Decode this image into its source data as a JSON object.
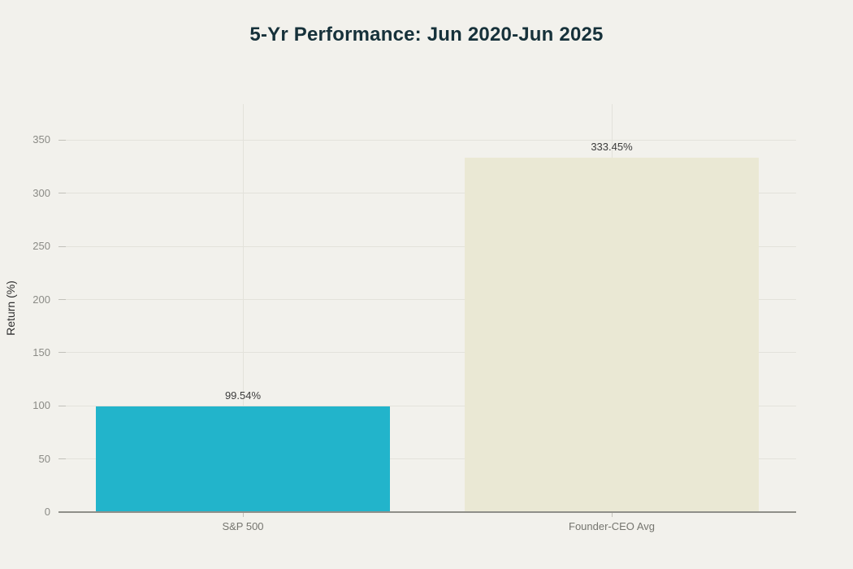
{
  "background_color": "#f2f1ec",
  "title_color": "#16313a",
  "chart_data": {
    "type": "bar",
    "title": "5-Yr Performance: Jun 2020-Jun 2025",
    "categories": [
      "S&P 500",
      "Founder-CEO Avg"
    ],
    "values": [
      99.54,
      333.45
    ],
    "value_labels": [
      "99.54%",
      "333.45%"
    ],
    "bar_colors": [
      "#22b4cb",
      "#eae8d4"
    ],
    "xlabel": "",
    "ylabel": "Return (%)",
    "ylim": [
      0,
      384
    ],
    "yticks": [
      0,
      50,
      100,
      150,
      200,
      250,
      300,
      350
    ],
    "ytick_labels": [
      "0",
      "50",
      "100",
      "150",
      "200",
      "250",
      "300",
      "350"
    ],
    "grid": true,
    "legend": false
  },
  "style_colors": {
    "gridline": "#e3e2db",
    "tick_mark": "#c2c1ba",
    "axis_line": "#8f8f89",
    "y_tick_label": "#8b8b86",
    "x_tick_label": "#75756f",
    "value_label": "#3b3b3b",
    "y_axis_title": "#2f2f2f"
  }
}
